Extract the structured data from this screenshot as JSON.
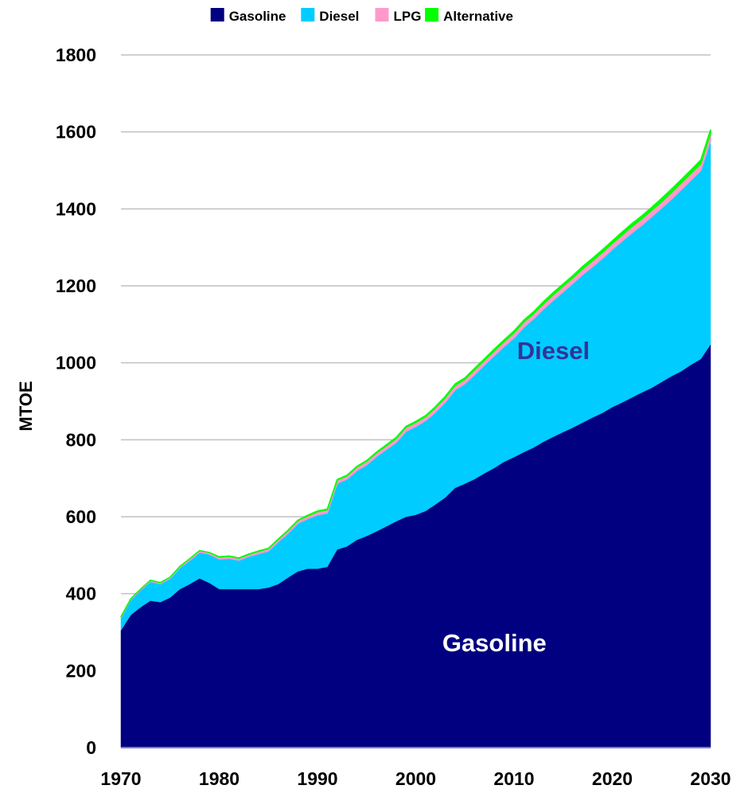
{
  "chart_data": {
    "type": "area",
    "stacked": true,
    "ylabel": "MTOE",
    "xlabel": "",
    "ylim": [
      0,
      1800
    ],
    "xlim": [
      1970,
      2030
    ],
    "yticks": [
      "0",
      "200",
      "400",
      "600",
      "800",
      "1000",
      "1200",
      "1400",
      "1600",
      "1800"
    ],
    "xticks": [
      "1970",
      "1980",
      "1990",
      "2000",
      "2010",
      "2020",
      "2030"
    ],
    "grid": true,
    "legend": {
      "placement": "top"
    },
    "x": [
      1970,
      1971,
      1972,
      1973,
      1974,
      1975,
      1976,
      1977,
      1978,
      1979,
      1980,
      1981,
      1982,
      1983,
      1984,
      1985,
      1986,
      1987,
      1988,
      1989,
      1990,
      1991,
      1992,
      1993,
      1994,
      1995,
      1996,
      1997,
      1998,
      1999,
      2000,
      2001,
      2002,
      2003,
      2004,
      2005,
      2006,
      2007,
      2008,
      2009,
      2010,
      2011,
      2012,
      2013,
      2014,
      2015,
      2016,
      2017,
      2018,
      2019,
      2020,
      2021,
      2022,
      2023,
      2024,
      2025,
      2026,
      2027,
      2028,
      2029,
      2030
    ],
    "series": [
      {
        "name": "Gasoline",
        "color": "#000080",
        "values": [
          305,
          345,
          365,
          382,
          378,
          390,
          412,
          425,
          440,
          428,
          412,
          412,
          412,
          412,
          412,
          416,
          425,
          442,
          458,
          465,
          465,
          470,
          515,
          523,
          540,
          550,
          562,
          575,
          588,
          600,
          605,
          615,
          632,
          650,
          675,
          686,
          698,
          713,
          727,
          743,
          755,
          768,
          780,
          795,
          808,
          820,
          832,
          845,
          858,
          870,
          885,
          897,
          910,
          923,
          935,
          950,
          965,
          978,
          995,
          1010,
          1048
        ]
      },
      {
        "name": "Diesel",
        "color": "#00CCFF",
        "values": [
          33,
          40,
          45,
          50,
          48,
          50,
          56,
          62,
          68,
          75,
          78,
          80,
          75,
          85,
          92,
          95,
          110,
          115,
          125,
          130,
          140,
          140,
          172,
          175,
          180,
          185,
          195,
          200,
          205,
          222,
          230,
          235,
          240,
          248,
          255,
          260,
          272,
          282,
          292,
          300,
          310,
          325,
          335,
          345,
          355,
          365,
          375,
          385,
          392,
          402,
          410,
          420,
          428,
          435,
          445,
          452,
          460,
          472,
          480,
          490,
          530
        ]
      },
      {
        "name": "LPG",
        "color": "#FF99CC",
        "values": [
          2,
          2,
          2,
          3,
          3,
          3,
          3,
          4,
          4,
          4,
          5,
          5,
          5,
          5,
          6,
          6,
          6,
          7,
          7,
          7,
          8,
          8,
          8,
          8,
          9,
          9,
          9,
          9,
          10,
          10,
          10,
          10,
          11,
          11,
          11,
          11,
          12,
          12,
          12,
          12,
          13,
          13,
          13,
          13,
          14,
          14,
          14,
          14,
          15,
          15,
          15,
          15,
          16,
          16,
          16,
          16,
          17,
          17,
          17,
          17,
          18
        ]
      },
      {
        "name": "Alternative",
        "color": "#00FF00",
        "values": [
          0,
          0,
          0,
          0,
          0,
          0,
          0,
          0,
          0,
          0,
          1,
          1,
          1,
          1,
          1,
          1,
          1,
          1,
          1,
          2,
          2,
          2,
          2,
          2,
          2,
          2,
          2,
          3,
          3,
          3,
          3,
          3,
          3,
          4,
          4,
          4,
          4,
          4,
          5,
          5,
          5,
          5,
          5,
          6,
          6,
          6,
          6,
          7,
          7,
          7,
          7,
          8,
          8,
          8,
          8,
          9,
          9,
          9,
          9,
          10,
          10
        ]
      }
    ],
    "annotations": [
      {
        "text": "Diesel",
        "x": 2014,
        "y": 1010,
        "color": "#333399"
      },
      {
        "text": "Gasoline",
        "x": 2008,
        "y": 250,
        "color": "#FFFFFF"
      }
    ]
  }
}
